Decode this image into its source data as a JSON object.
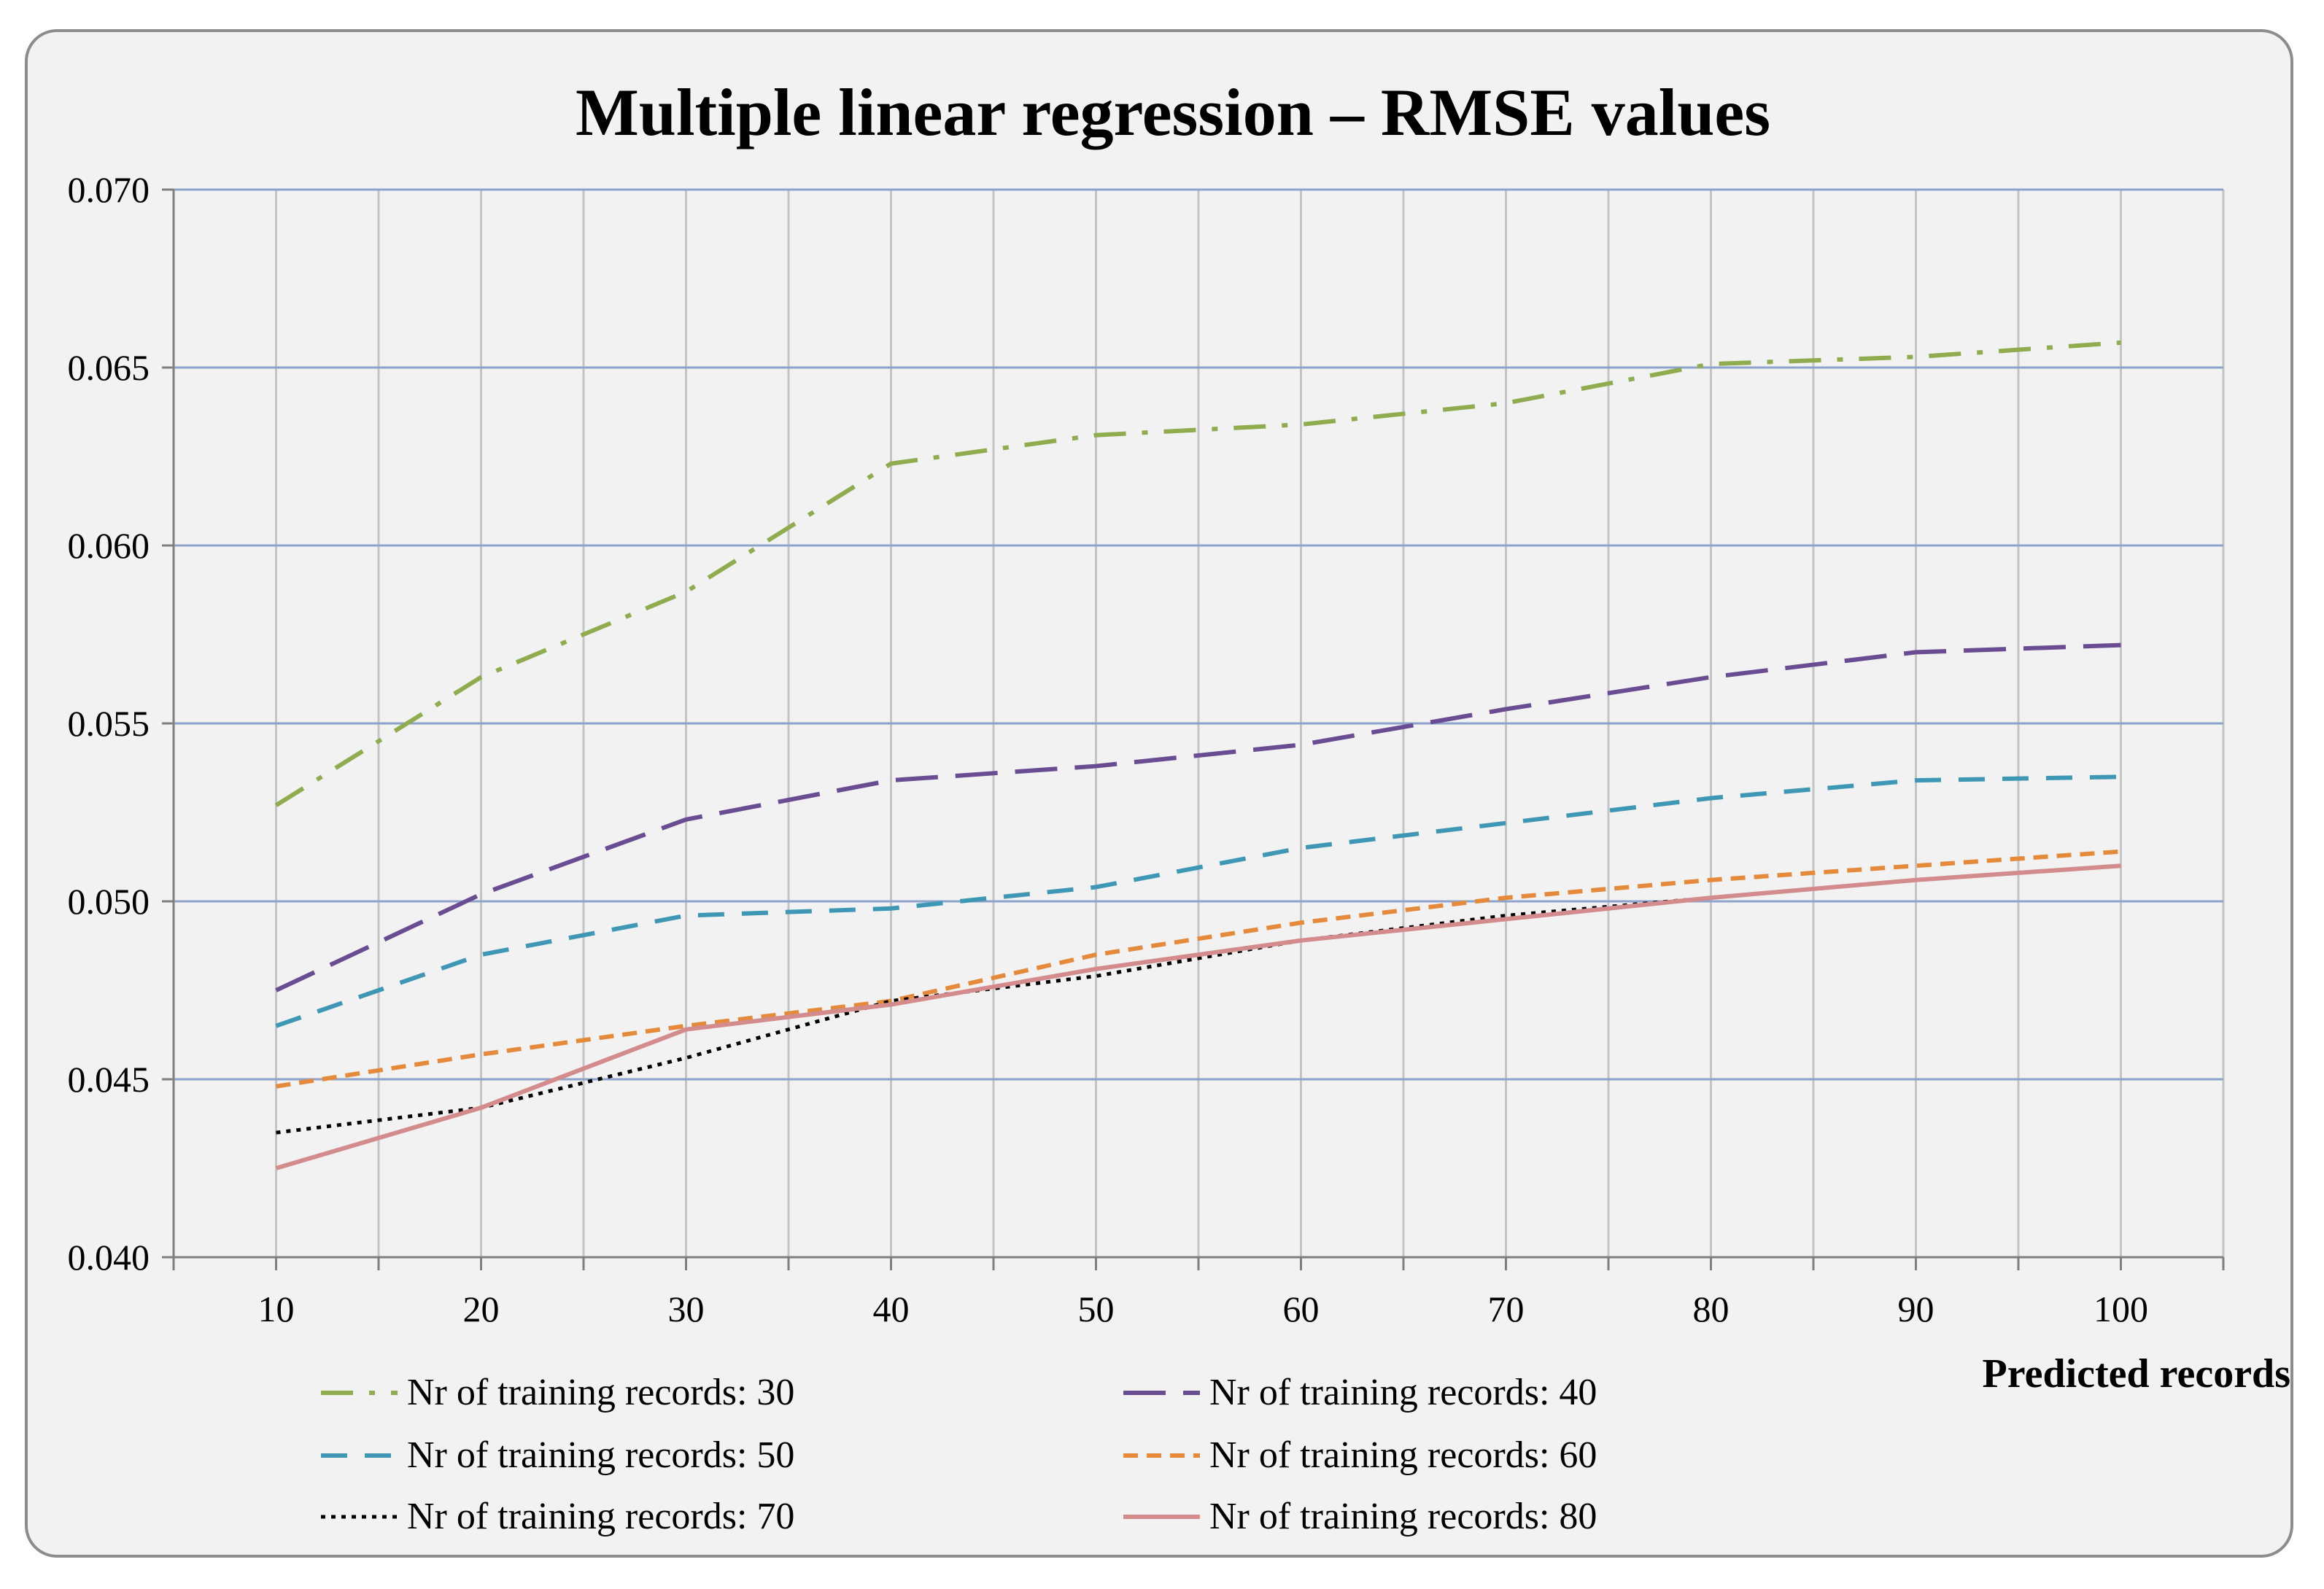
{
  "chart_data": {
    "type": "line",
    "title": "Multiple  linear regression – RMSE values",
    "xlabel": "Predicted records",
    "ylabel": "",
    "categories": [
      "10",
      "20",
      "30",
      "40",
      "50",
      "60",
      "70",
      "80",
      "90",
      "100"
    ],
    "x": [
      10,
      20,
      30,
      40,
      50,
      60,
      70,
      80,
      90,
      100
    ],
    "xlim": [
      5,
      105
    ],
    "ylim": [
      0.04,
      0.07
    ],
    "yticks": [
      0.04,
      0.045,
      0.05,
      0.055,
      0.06,
      0.065,
      0.07
    ],
    "ytick_labels": [
      "0.040",
      "0.045",
      "0.050",
      "0.055",
      "0.060",
      "0.065",
      "0.070"
    ],
    "grid": true,
    "legend_position": "bottom",
    "series": [
      {
        "name": "Nr of training records: 30",
        "color": "#8fac4e",
        "dash": "dashdot",
        "values": [
          0.0527,
          0.0563,
          0.0587,
          0.0623,
          0.0631,
          0.0634,
          0.064,
          0.0651,
          0.0653,
          0.0657
        ]
      },
      {
        "name": "Nr of training records: 40",
        "color": "#6a4c93",
        "dash": "longdash",
        "values": [
          0.0475,
          0.0502,
          0.0523,
          0.0534,
          0.0538,
          0.0544,
          0.0554,
          0.0563,
          0.057,
          0.0572
        ]
      },
      {
        "name": "Nr of training records: 50",
        "color": "#3e98b5",
        "dash": "dash",
        "values": [
          0.0465,
          0.0485,
          0.0496,
          0.0498,
          0.0504,
          0.0515,
          0.0522,
          0.0529,
          0.0534,
          0.0535
        ]
      },
      {
        "name": "Nr of training records: 60",
        "color": "#e58a3a",
        "dash": "shortdash",
        "values": [
          0.0448,
          0.0457,
          0.0465,
          0.0472,
          0.0485,
          0.0494,
          0.0501,
          0.0506,
          0.051,
          0.0514
        ]
      },
      {
        "name": "Nr of training records: 70",
        "color": "#000000",
        "dash": "dot",
        "values": [
          0.0435,
          0.0442,
          0.0456,
          0.0472,
          0.0479,
          0.0489,
          0.0496,
          0.0501,
          0.0506,
          0.051
        ]
      },
      {
        "name": "Nr of training records: 80",
        "color": "#d48b8b",
        "dash": "solid",
        "values": [
          0.0425,
          0.0442,
          0.0464,
          0.0471,
          0.0481,
          0.0489,
          0.0495,
          0.0501,
          0.0506,
          0.051
        ]
      }
    ]
  }
}
